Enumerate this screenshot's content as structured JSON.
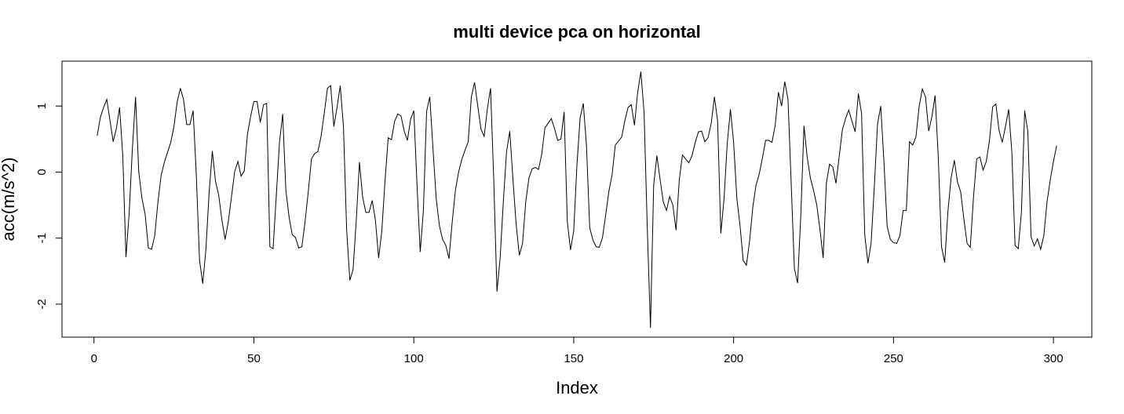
{
  "chart_data": {
    "type": "line",
    "title": "multi device pca on horizontal",
    "xlabel": "Index",
    "ylabel": "acc(m/s^2)",
    "xlim": [
      -10,
      312
    ],
    "ylim": [
      -2.5,
      1.68
    ],
    "xticks": [
      0,
      50,
      100,
      150,
      200,
      250,
      300
    ],
    "yticks": [
      -2,
      -1,
      0,
      1
    ],
    "grid": false,
    "legend": "none",
    "line_color": "#000000",
    "series": [
      {
        "x": [
          1,
          2,
          3,
          4,
          5,
          6,
          7,
          8,
          9,
          10,
          11,
          12,
          13,
          14,
          15,
          16,
          17,
          18,
          19,
          20,
          21,
          22,
          23,
          24,
          25,
          26,
          27,
          28,
          29,
          30,
          31,
          32,
          33,
          34,
          35,
          36,
          37,
          38,
          39,
          40,
          41,
          42,
          43,
          44,
          45,
          46,
          47,
          48,
          49,
          50,
          51,
          52,
          53,
          54,
          55,
          56,
          57,
          58,
          59,
          60,
          61,
          62,
          63,
          64,
          65,
          66,
          67,
          68,
          69,
          70,
          71,
          72,
          73,
          74,
          75,
          76,
          77,
          78,
          79,
          80,
          81,
          82,
          83,
          84,
          85,
          86,
          87,
          88,
          89,
          90,
          91,
          92,
          93,
          94,
          95,
          96,
          97,
          98,
          99,
          100,
          101,
          102,
          103,
          104,
          105,
          106,
          107,
          108,
          109,
          110,
          111,
          112,
          113,
          114,
          115,
          116,
          117,
          118,
          119,
          120,
          121,
          122,
          123,
          124,
          125,
          126,
          127,
          128,
          129,
          130,
          131,
          132,
          133,
          134,
          135,
          136,
          137,
          138,
          139,
          140,
          141,
          142,
          143,
          144,
          145,
          146,
          147,
          148,
          149,
          150,
          151,
          152,
          153,
          154,
          155,
          156,
          157,
          158,
          159,
          160,
          161,
          162,
          163,
          164,
          165,
          166,
          167,
          168,
          169,
          170,
          171,
          172,
          173,
          174,
          175,
          176,
          177,
          178,
          179,
          180,
          181,
          182,
          183,
          184,
          185,
          186,
          187,
          188,
          189,
          190,
          191,
          192,
          193,
          194,
          195,
          196,
          197,
          198,
          199,
          200,
          201,
          202,
          203,
          204,
          205,
          206,
          207,
          208,
          209,
          210,
          211,
          212,
          213,
          214,
          215,
          216,
          217,
          218,
          219,
          220,
          221,
          222,
          223,
          224,
          225,
          226,
          227,
          228,
          229,
          230,
          231,
          232,
          233,
          234,
          235,
          236,
          237,
          238,
          239,
          240,
          241,
          242,
          243,
          244,
          245,
          246,
          247,
          248,
          249,
          250,
          251,
          252,
          253,
          254,
          255,
          256,
          257,
          258,
          259,
          260,
          261,
          262,
          263,
          264,
          265,
          266,
          267,
          268,
          269,
          270,
          271,
          272,
          273,
          274,
          275,
          276,
          277,
          278,
          279,
          280,
          281,
          282,
          283,
          284,
          285,
          286,
          287,
          288,
          289,
          290,
          291,
          292,
          293,
          294,
          295,
          296,
          297,
          298,
          299,
          300,
          301
        ],
        "y": [
          0.55,
          0.83,
          0.98,
          1.1,
          0.78,
          0.46,
          0.66,
          0.98,
          0.25,
          -1.29,
          -0.62,
          0.35,
          1.14,
          0.0,
          -0.4,
          -0.64,
          -1.15,
          -1.17,
          -0.96,
          -0.45,
          -0.05,
          0.15,
          0.3,
          0.45,
          0.69,
          1.06,
          1.27,
          1.1,
          0.72,
          0.72,
          0.93,
          -0.05,
          -1.33,
          -1.69,
          -1.17,
          -0.31,
          0.32,
          -0.14,
          -0.35,
          -0.73,
          -1.02,
          -0.75,
          -0.37,
          0.01,
          0.16,
          -0.06,
          0.02,
          0.58,
          0.85,
          1.07,
          1.07,
          0.75,
          1.02,
          1.04,
          -1.13,
          -1.16,
          -0.36,
          0.45,
          0.88,
          -0.28,
          -0.68,
          -0.95,
          -0.99,
          -1.15,
          -1.13,
          -0.75,
          -0.3,
          0.2,
          0.28,
          0.31,
          0.54,
          0.89,
          1.27,
          1.31,
          0.69,
          0.98,
          1.31,
          0.69,
          -0.87,
          -1.64,
          -1.48,
          -0.74,
          0.15,
          -0.38,
          -0.61,
          -0.61,
          -0.43,
          -0.73,
          -1.3,
          -0.89,
          -0.13,
          0.52,
          0.49,
          0.77,
          0.88,
          0.85,
          0.62,
          0.48,
          0.8,
          0.93,
          -0.19,
          -1.21,
          -0.58,
          0.92,
          1.14,
          0.35,
          -0.4,
          -0.81,
          -1.02,
          -1.11,
          -1.31,
          -0.76,
          -0.28,
          0.0,
          0.19,
          0.33,
          0.46,
          1.14,
          1.36,
          1.0,
          0.65,
          0.54,
          0.96,
          1.27,
          -0.12,
          -1.81,
          -1.3,
          -0.44,
          0.31,
          0.62,
          -0.11,
          -0.79,
          -1.26,
          -1.08,
          -0.45,
          -0.09,
          0.05,
          0.07,
          0.04,
          0.27,
          0.67,
          0.74,
          0.81,
          0.66,
          0.48,
          0.5,
          0.91,
          -0.75,
          -1.18,
          -0.89,
          0.1,
          0.82,
          1.04,
          0.39,
          -0.84,
          -1.03,
          -1.13,
          -1.14,
          -0.99,
          -0.65,
          -0.29,
          -0.04,
          0.41,
          0.47,
          0.53,
          0.78,
          0.98,
          1.02,
          0.71,
          1.21,
          1.52,
          0.9,
          -0.84,
          -2.36,
          -0.2,
          0.25,
          -0.11,
          -0.45,
          -0.58,
          -0.37,
          -0.5,
          -0.88,
          -0.12,
          0.26,
          0.2,
          0.14,
          0.25,
          0.45,
          0.61,
          0.62,
          0.46,
          0.52,
          0.74,
          1.14,
          0.77,
          -0.93,
          -0.41,
          0.43,
          0.95,
          0.45,
          -0.39,
          -0.81,
          -1.34,
          -1.41,
          -1.04,
          -0.53,
          -0.2,
          -0.03,
          0.21,
          0.48,
          0.48,
          0.45,
          0.71,
          1.21,
          1.0,
          1.37,
          1.1,
          -0.17,
          -1.46,
          -1.68,
          -0.66,
          0.7,
          0.23,
          -0.09,
          -0.28,
          -0.5,
          -0.87,
          -1.3,
          -0.17,
          0.12,
          0.08,
          -0.17,
          0.23,
          0.64,
          0.81,
          0.94,
          0.77,
          0.61,
          1.19,
          0.89,
          -0.95,
          -1.38,
          -1.07,
          -0.21,
          0.73,
          1.0,
          0.16,
          -0.82,
          -1.02,
          -1.07,
          -1.08,
          -0.96,
          -0.58,
          -0.58,
          0.46,
          0.41,
          0.53,
          0.99,
          1.26,
          1.14,
          0.62,
          0.84,
          1.16,
          0.22,
          -1.13,
          -1.37,
          -0.6,
          -0.09,
          0.18,
          -0.15,
          -0.3,
          -0.71,
          -1.08,
          -1.14,
          -0.38,
          0.2,
          0.23,
          0.03,
          0.16,
          0.48,
          0.99,
          1.03,
          0.63,
          0.45,
          0.69,
          0.95,
          0.3,
          -1.11,
          -1.16,
          -0.6,
          0.93,
          0.61,
          -0.98,
          -1.12,
          -1.01,
          -1.17,
          -0.96,
          -0.45,
          -0.12,
          0.16,
          0.4
        ]
      }
    ]
  }
}
